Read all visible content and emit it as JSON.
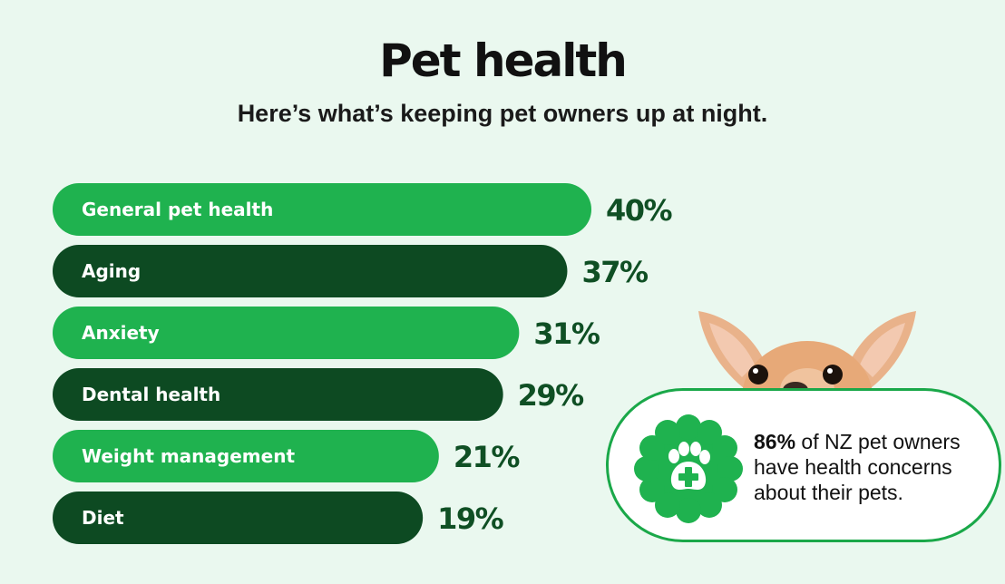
{
  "header": {
    "title": "Pet health",
    "subtitle": "Here’s what’s keeping pet owners up at night."
  },
  "chart_data": {
    "type": "bar",
    "orientation": "horizontal",
    "title": "Pet health",
    "subtitle": "Here’s what’s keeping pet owners up at night.",
    "categories": [
      "General pet health",
      "Aging",
      "Anxiety",
      "Dental health",
      "Weight management",
      "Diet"
    ],
    "values": [
      40,
      37,
      31,
      29,
      21,
      19
    ],
    "value_labels": [
      "40%",
      "37%",
      "31%",
      "29%",
      "21%",
      "19%"
    ],
    "unit": "%",
    "bar_colors": [
      "#1fb24f",
      "#0d4a22",
      "#1fb24f",
      "#0d4a22",
      "#1fb24f",
      "#0d4a22"
    ],
    "grid": false,
    "legend": "none"
  },
  "callout": {
    "stat": "86%",
    "text": " of NZ pet owners have health concerns about their pets."
  },
  "colors": {
    "background": "#eaf8ef",
    "bright_green": "#1fb24f",
    "dark_green": "#0d4a22",
    "value_text": "#0f4f24",
    "callout_border": "#1aa849"
  },
  "icons": {
    "badge": "paw-plus-badge-icon",
    "dog": "chihuahua-head-image"
  }
}
